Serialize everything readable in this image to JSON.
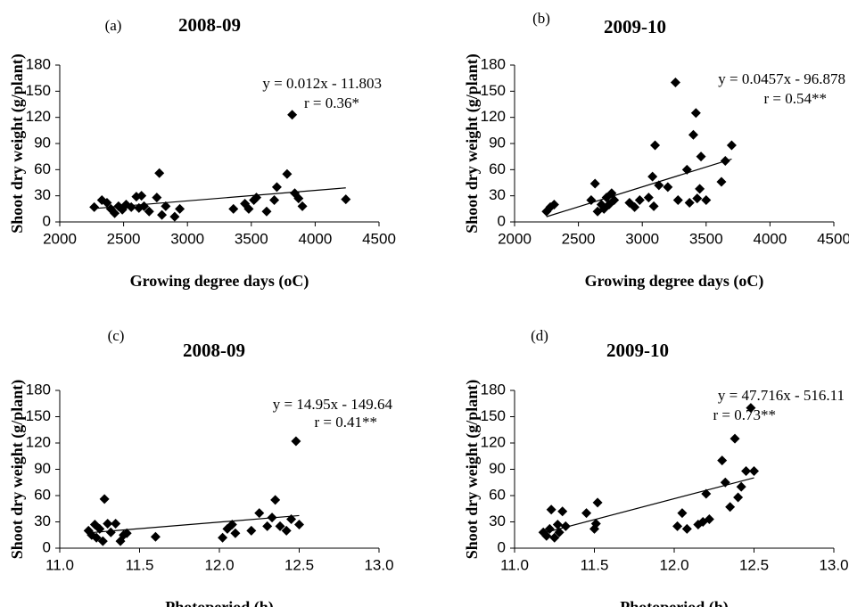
{
  "chart_data": [
    {
      "type": "scatter",
      "panel_label": "(a)",
      "title": "2008-09",
      "x_label": "Growing degree days (oC)",
      "y_label": "Shoot dry weight (g/plant)",
      "equation": "y = 0.012x - 11.803",
      "r_text": "r = 0.36*",
      "color": "#000000",
      "x": [
        2270,
        2330,
        2370,
        2400,
        2430,
        2460,
        2490,
        2520,
        2560,
        2600,
        2620,
        2640,
        2660,
        2700,
        2760,
        2780,
        2800,
        2830,
        2900,
        2940,
        3360,
        3450,
        3480,
        3520,
        3540,
        3620,
        3680,
        3700,
        3780,
        3820,
        3840,
        3870,
        3900,
        4240
      ],
      "values": [
        17,
        25,
        22,
        15,
        10,
        18,
        14,
        20,
        17,
        29,
        16,
        30,
        18,
        12,
        28,
        56,
        8,
        18,
        6,
        15,
        15,
        21,
        15,
        25,
        28,
        12,
        25,
        40,
        55,
        123,
        33,
        27,
        18,
        26
      ],
      "trend_x": [
        2270,
        4240
      ],
      "trend_y": [
        15.4,
        39.1
      ],
      "xlim": [
        2000,
        4500
      ],
      "xticks": [
        2000,
        2500,
        3000,
        3500,
        4000,
        4500
      ],
      "ylim": [
        0,
        180
      ],
      "yticks": [
        0,
        30,
        60,
        90,
        120,
        150,
        180
      ]
    },
    {
      "type": "scatter",
      "panel_label": "(b)",
      "title": "2009-10",
      "x_label": "Growing degree days (oC)",
      "y_label": "Shoot dry weight (g/plant)",
      "equation": "y = 0.0457x - 96.878",
      "r_text": "r = 0.54**",
      "color": "#000000",
      "x": [
        2250,
        2280,
        2310,
        2600,
        2630,
        2650,
        2680,
        2700,
        2720,
        2740,
        2760,
        2780,
        2900,
        2940,
        2980,
        3050,
        3080,
        3090,
        3100,
        3130,
        3200,
        3260,
        3280,
        3350,
        3370,
        3400,
        3420,
        3430,
        3450,
        3460,
        3500,
        3620,
        3650,
        3700
      ],
      "values": [
        12,
        17,
        20,
        25,
        44,
        12,
        20,
        15,
        28,
        20,
        33,
        25,
        22,
        17,
        25,
        28,
        52,
        18,
        88,
        42,
        40,
        160,
        25,
        60,
        22,
        100,
        125,
        27,
        38,
        75,
        25,
        46,
        70,
        88
      ],
      "trend_x": [
        2250,
        3700
      ],
      "trend_y": [
        6,
        72.2
      ],
      "xlim": [
        2000,
        4500
      ],
      "xticks": [
        2000,
        2500,
        3000,
        3500,
        4000,
        4500
      ],
      "ylim": [
        0,
        180
      ],
      "yticks": [
        0,
        30,
        60,
        90,
        120,
        150,
        180
      ]
    },
    {
      "type": "scatter",
      "panel_label": "(c)",
      "title": "2008-09",
      "x_label": "Photoperiod (h)",
      "y_label": "Shoot dry weight (g/plant)",
      "equation": "y = 14.95x - 149.64",
      "r_text": "r = 0.41**",
      "color": "#000000",
      "x": [
        11.18,
        11.2,
        11.22,
        11.23,
        11.25,
        11.27,
        11.28,
        11.3,
        11.32,
        11.35,
        11.38,
        11.4,
        11.42,
        11.6,
        12.02,
        12.05,
        12.08,
        12.1,
        12.2,
        12.25,
        12.3,
        12.33,
        12.35,
        12.38,
        12.42,
        12.45,
        12.48,
        12.5
      ],
      "values": [
        20,
        15,
        27,
        12,
        22,
        8,
        56,
        28,
        18,
        28,
        8,
        15,
        17,
        13,
        12,
        22,
        27,
        17,
        20,
        40,
        25,
        35,
        55,
        25,
        20,
        33,
        122,
        27
      ],
      "trend_x": [
        11.18,
        12.5
      ],
      "trend_y": [
        17.5,
        37.2
      ],
      "xlim": [
        11,
        13
      ],
      "xticks": [
        {
          "value": 11,
          "label": "11.0"
        },
        11.5,
        {
          "value": 12,
          "label": "12.0"
        },
        12.5,
        {
          "value": 13,
          "label": "13.0"
        }
      ],
      "ylim": [
        0,
        180
      ],
      "yticks": [
        0,
        30,
        60,
        90,
        120,
        150,
        180
      ]
    },
    {
      "type": "scatter",
      "panel_label": "(d)",
      "title": "2009-10",
      "x_label": "Photoperiod (h)",
      "y_label": "Shoot dry weight (g/plant)",
      "equation": "y = 47.716x - 516.11",
      "r_text": "r = 0.73**",
      "color": "#000000",
      "x": [
        11.18,
        11.2,
        11.22,
        11.23,
        11.25,
        11.27,
        11.28,
        11.3,
        11.32,
        11.45,
        11.5,
        11.52,
        11.51,
        12.02,
        12.05,
        12.08,
        12.15,
        12.18,
        12.2,
        12.22,
        12.3,
        12.32,
        12.35,
        12.38,
        12.4,
        12.42,
        12.45,
        12.48,
        12.5
      ],
      "values": [
        18,
        14,
        22,
        44,
        12,
        27,
        18,
        42,
        25,
        40,
        22,
        52,
        28,
        25,
        40,
        22,
        27,
        30,
        62,
        33,
        100,
        75,
        47,
        125,
        58,
        70,
        88,
        160,
        88
      ],
      "trend_x": [
        11.18,
        12.5
      ],
      "trend_y": [
        17.3,
        80.3
      ],
      "xlim": [
        11,
        13
      ],
      "xticks": [
        {
          "value": 11,
          "label": "11.0"
        },
        11.5,
        {
          "value": 12,
          "label": "12.0"
        },
        12.5,
        {
          "value": 13,
          "label": "13.0"
        }
      ],
      "ylim": [
        0,
        180
      ],
      "yticks": [
        0,
        30,
        60,
        90,
        120,
        150,
        180
      ]
    }
  ]
}
